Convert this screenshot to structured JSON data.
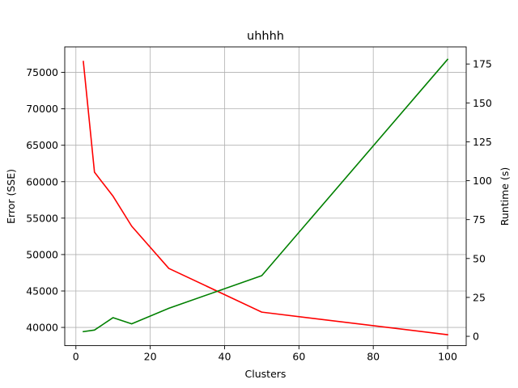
{
  "chart_data": {
    "type": "line",
    "title": "uhhhh",
    "xlabel": "Clusters",
    "ylabel_left": "Error (SSE)",
    "ylabel_right": "Runtime (s)",
    "xlim": [
      -3,
      105
    ],
    "ylim_left": [
      37500,
      78500
    ],
    "ylim_right": [
      -6,
      186
    ],
    "xticks": [
      0,
      20,
      40,
      60,
      80,
      100
    ],
    "yticks_left": [
      40000,
      45000,
      50000,
      55000,
      60000,
      65000,
      70000,
      75000
    ],
    "yticks_right": [
      0,
      25,
      50,
      75,
      100,
      125,
      150,
      175
    ],
    "grid": true,
    "series": [
      {
        "axis": "left",
        "color": "#ff0000",
        "x": [
          2,
          5,
          10,
          15,
          25,
          50,
          100
        ],
        "values": [
          76500,
          61300,
          58000,
          53900,
          48100,
          42100,
          39000
        ]
      },
      {
        "axis": "right",
        "color": "#008000",
        "x": [
          2,
          5,
          10,
          15,
          25,
          50,
          100
        ],
        "values": [
          3,
          4,
          12,
          8,
          18,
          39,
          178
        ]
      }
    ]
  }
}
